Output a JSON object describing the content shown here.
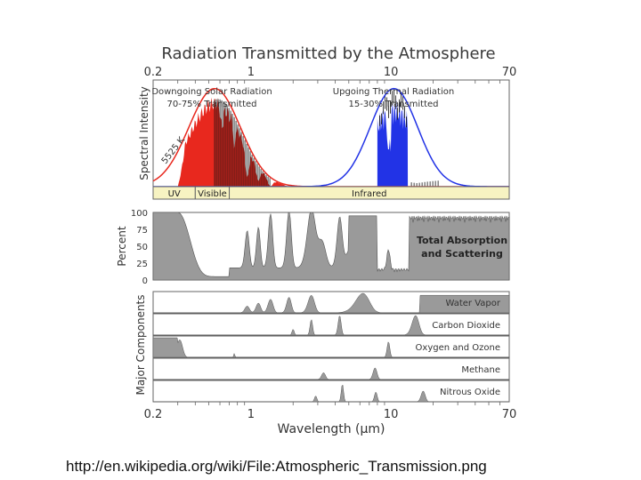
{
  "caption": "http://en.wikipedia.org/wiki/File:Atmospheric_Transmission.png",
  "colors": {
    "solar": "#e8281e",
    "thermal": "#2233e6",
    "absorption": "#9a9a9a",
    "band": "#f7f3c2",
    "panel_bg": "#d8d8d8"
  },
  "chart_data": {
    "type": "area",
    "title": "Radiation Transmitted by the Atmosphere",
    "x_scale": "log",
    "xlim": [
      0.2,
      70
    ],
    "x_ticks": [
      "0.2",
      "1",
      "10",
      "70"
    ],
    "xlabel": "Wavelength (μm)",
    "top_panel": {
      "ylabel": "Spectral Intensity",
      "solar_label": "Downgoing Solar Radiation",
      "solar_sub": "70-75% Transmitted",
      "thermal_label": "Upgoing Thermal Radiation",
      "thermal_sub": "15-30% Transmitted",
      "blackbody_label": "5525 K",
      "series": [
        {
          "name": "Solar blackbody (5525 K)",
          "peak_um": 0.55,
          "peak_rel": 0.92
        },
        {
          "name": "Thermal blackbody",
          "peak_um": 10.5,
          "peak_rel": 0.92
        }
      ],
      "bands": [
        {
          "label": "UV",
          "from": 0.2,
          "to": 0.4
        },
        {
          "label": "Visible",
          "from": 0.4,
          "to": 0.7
        },
        {
          "label": "Infrared",
          "from": 0.7,
          "to": 70
        }
      ]
    },
    "absorption_panel": {
      "ylabel": "Percent",
      "y_ticks": [
        100,
        75,
        50,
        25,
        0
      ],
      "ylim": [
        0,
        100
      ],
      "label_line1": "Total Absorption",
      "label_line2": "and Scattering"
    },
    "components": {
      "ylabel": "Major Components",
      "rows": [
        {
          "name": "Water Vapor"
        },
        {
          "name": "Carbon Dioxide"
        },
        {
          "name": "Oxygen and Ozone"
        },
        {
          "name": "Methane"
        },
        {
          "name": "Nitrous Oxide"
        }
      ]
    }
  }
}
